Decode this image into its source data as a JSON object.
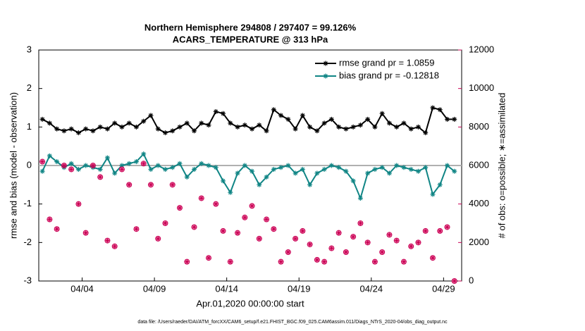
{
  "chart_data": {
    "type": "line",
    "title": "Northern Hemisphere 294808 / 297407 = 99.126%",
    "subtitle": "ACARS_TEMPERATURE @ 313 hPa",
    "xlabel": "Apr.01,2020 00:00:00 start",
    "ylabel": "rmse and bias (model - observation)",
    "y2label": "# of obs: o=possible; ∗=assimilated",
    "footnote": "data file: /Users/raeder/DAI/ATM_forcXX/CAM6_setup/f.e21.FHIST_BGC.f09_025.CAM6assim.011/Diags_NTrS_2020-04/obs_diag_output.nc",
    "x": [
      0.25,
      0.75,
      1.25,
      1.75,
      2.25,
      2.75,
      3.25,
      3.75,
      4.25,
      4.75,
      5.25,
      5.75,
      6.25,
      6.75,
      7.25,
      7.75,
      8.25,
      8.75,
      9.25,
      9.75,
      10.25,
      10.75,
      11.25,
      11.75,
      12.25,
      12.75,
      13.25,
      13.75,
      14.25,
      14.75,
      15.25,
      15.75,
      16.25,
      16.75,
      17.25,
      17.75,
      18.25,
      18.75,
      19.25,
      19.75,
      20.25,
      20.75,
      21.25,
      21.75,
      22.25,
      22.75,
      23.25,
      23.75,
      24.25,
      24.75,
      25.25,
      25.75,
      26.25,
      26.75,
      27.25,
      27.75,
      28.25,
      28.75
    ],
    "xlim": [
      0,
      29.25
    ],
    "xticks": [
      {
        "value": 3,
        "label": "04/04"
      },
      {
        "value": 8,
        "label": "04/09"
      },
      {
        "value": 13,
        "label": "04/14"
      },
      {
        "value": 18,
        "label": "04/19"
      },
      {
        "value": 23,
        "label": "04/24"
      },
      {
        "value": 28,
        "label": "04/29"
      }
    ],
    "ylim": [
      -3,
      3
    ],
    "yticks": [
      -3,
      -2,
      -1,
      0,
      1,
      2,
      3
    ],
    "y2lim": [
      0,
      12000
    ],
    "y2ticks": [
      0,
      2000,
      4000,
      6000,
      8000,
      10000,
      12000
    ],
    "hline": 0,
    "legend": "upper right",
    "legend_color": "#1f5fd6",
    "axis2_color": "#cc0055",
    "series": [
      {
        "name": "rmse grand pr = 1.0859",
        "color": "#000000",
        "values": [
          1.2,
          1.1,
          0.95,
          0.9,
          0.95,
          0.85,
          0.95,
          0.9,
          1.0,
          0.95,
          1.1,
          1.0,
          1.1,
          1.0,
          1.15,
          1.3,
          0.95,
          0.85,
          0.9,
          1.0,
          1.1,
          0.9,
          1.1,
          1.05,
          1.4,
          1.35,
          1.1,
          1.0,
          1.05,
          0.95,
          1.05,
          0.9,
          1.45,
          1.3,
          1.2,
          0.95,
          1.3,
          1.0,
          0.9,
          1.1,
          1.2,
          1.0,
          0.95,
          1.0,
          1.05,
          1.2,
          1.0,
          1.35,
          1.1,
          1.0,
          1.1,
          0.95,
          1.0,
          0.85,
          1.5,
          1.45,
          1.2,
          1.2
        ]
      },
      {
        "name": "bias grand pr = -0.12818",
        "color": "#108585",
        "values": [
          -0.15,
          0.25,
          0.1,
          -0.05,
          0.05,
          -0.1,
          0.0,
          -0.05,
          -0.1,
          0.2,
          -0.2,
          0.0,
          0.05,
          0.1,
          0.3,
          -0.1,
          0.0,
          -0.1,
          -0.05,
          0.05,
          -0.3,
          -0.1,
          0.05,
          0.0,
          -0.05,
          -0.4,
          -0.7,
          -0.2,
          0.0,
          -0.15,
          -0.5,
          -0.3,
          -0.1,
          -0.05,
          0.0,
          -0.2,
          -0.1,
          -0.5,
          -0.2,
          -0.1,
          0.0,
          -0.05,
          -0.15,
          -0.4,
          -0.85,
          -0.2,
          -0.1,
          -0.05,
          -0.2,
          0.0,
          -0.05,
          -0.1,
          -0.15,
          -0.05,
          -0.75,
          -0.5,
          0.0,
          -0.15
        ]
      },
      {
        "color": "#cc0055",
        "axis": "y2",
        "marker": "o*",
        "values": [
          6200,
          3200,
          2700,
          6000,
          5800,
          4000,
          2500,
          6000,
          5400,
          2100,
          1800,
          5800,
          5000,
          2700,
          6100,
          5000,
          2200,
          3000,
          5000,
          3800,
          1000,
          2800,
          4300,
          1200,
          4000,
          2600,
          1000,
          2500,
          3300,
          3900,
          2200,
          3200,
          2700,
          1000,
          1500,
          2200,
          2600,
          1900,
          1100,
          1000,
          1700,
          2500,
          1500,
          2300,
          3000,
          2000,
          1000,
          1500,
          2400,
          2100,
          1000,
          1800,
          2000,
          2600,
          1200,
          2600,
          2800,
          0
        ]
      }
    ]
  }
}
